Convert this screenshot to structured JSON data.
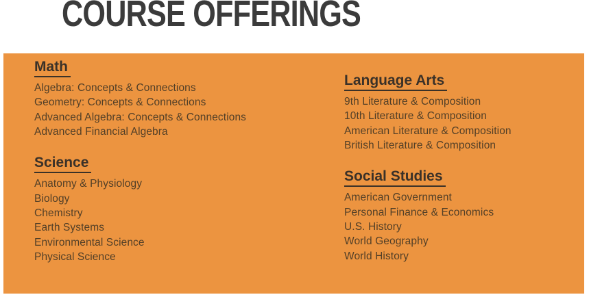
{
  "title": "COURSE OFFERINGS",
  "colors": {
    "panel_bg": "#EC9440",
    "title_text": "#3B3B3B",
    "heading_text": "#3A3128",
    "item_text": "#523F27",
    "page_bg": "#FFFFFF"
  },
  "sections": [
    {
      "heading": "Math",
      "items": [
        "Algebra: Concepts & Connections",
        "Geometry: Concepts & Connections",
        "Advanced Algebra: Concepts & Connections",
        "Advanced Financial Algebra"
      ]
    },
    {
      "heading": "Science",
      "items": [
        "Anatomy & Physiology",
        "Biology",
        "Chemistry",
        "Earth Systems",
        "Environmental Science",
        "Physical Science"
      ]
    },
    {
      "heading": "Language Arts",
      "items": [
        "9th Literature & Composition",
        "10th Literature & Composition",
        "American Literature & Composition",
        "British Literature & Composition"
      ]
    },
    {
      "heading": "Social Studies",
      "items": [
        "American Government",
        "Personal Finance & Economics",
        "U.S. History",
        "World Geography",
        "World History"
      ]
    }
  ]
}
